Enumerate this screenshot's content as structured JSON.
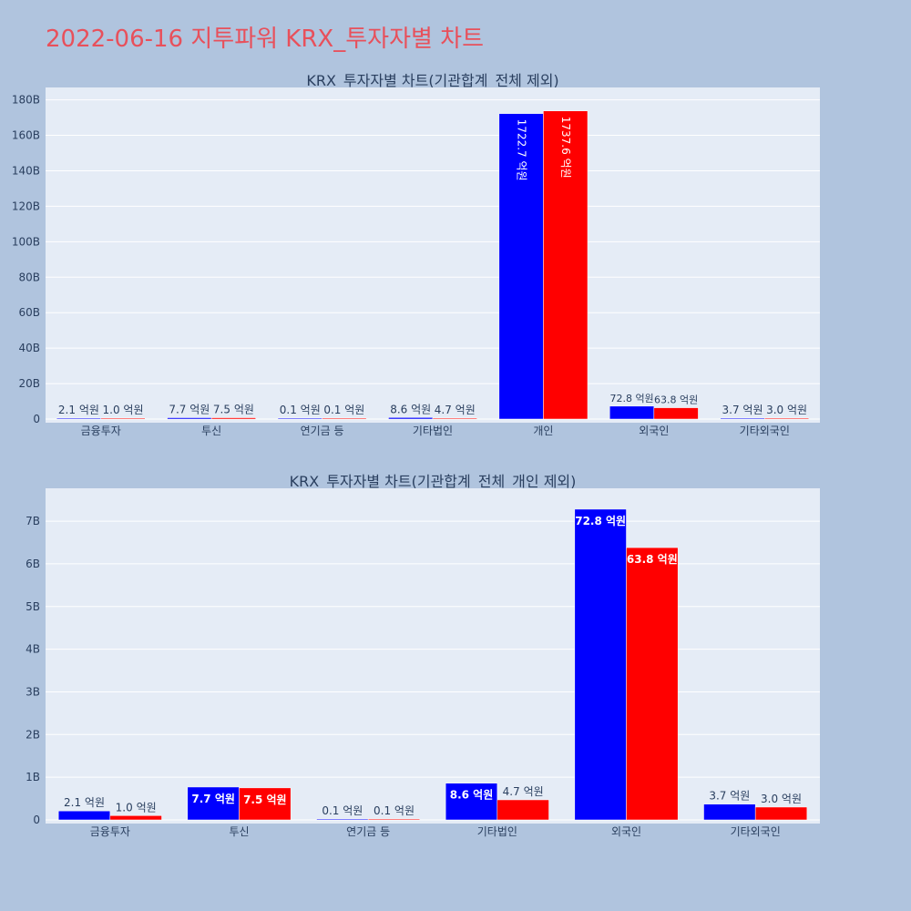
{
  "page_title": "2022-06-16 지투파워 KRX_투자자별 차트",
  "colors": {
    "buy": "#0000ff",
    "sell": "#ff0000",
    "plot_bg": "#e5ecf6",
    "page_bg": "#b0c4de",
    "title": "#e8505b"
  },
  "chart_data": [
    {
      "type": "bar",
      "title": "KRX_투자자별 차트(기관합계_전체 제외)",
      "categories": [
        "금융투자",
        "투신",
        "연기금 등",
        "기타법인",
        "개인",
        "외국인",
        "기타외국인"
      ],
      "series": [
        {
          "color": "#0000ff",
          "values": [
            0.21,
            0.77,
            0.01,
            0.86,
            172.27,
            7.28,
            0.37
          ],
          "labels": [
            "2.1 억원",
            "7.7 억원",
            "0.1 억원",
            "8.6 억원",
            "1722.7 억원",
            "72.8 억원",
            "3.7 억원"
          ]
        },
        {
          "color": "#ff0000",
          "values": [
            0.1,
            0.75,
            0.01,
            0.47,
            173.76,
            6.38,
            0.3
          ],
          "labels": [
            "1.0 억원",
            "7.5 억원",
            "0.1 억원",
            "4.7 억원",
            "1737.6 억원",
            "63.8 억원",
            "3.0 억원"
          ]
        }
      ],
      "ylim": [
        0,
        187
      ],
      "yticks": [
        0,
        20,
        40,
        60,
        80,
        100,
        120,
        140,
        160,
        180
      ],
      "ytick_labels": [
        "0",
        "20B",
        "40B",
        "60B",
        "80B",
        "100B",
        "120B",
        "140B",
        "160B",
        "180B"
      ],
      "legend": "none",
      "grid": true
    },
    {
      "type": "bar",
      "title": "KRX_투자자별 차트(기관합계_전체_개인 제외)",
      "categories": [
        "금융투자",
        "투신",
        "연기금 등",
        "기타법인",
        "외국인",
        "기타외국인"
      ],
      "series": [
        {
          "color": "#0000ff",
          "values": [
            0.21,
            0.77,
            0.01,
            0.86,
            7.28,
            0.37
          ],
          "labels": [
            "2.1 억원",
            "7.7 억원",
            "0.1 억원",
            "8.6 억원",
            "72.8 억원",
            "3.7 억원"
          ]
        },
        {
          "color": "#ff0000",
          "values": [
            0.1,
            0.75,
            0.01,
            0.47,
            6.38,
            0.3
          ],
          "labels": [
            "1.0 억원",
            "7.5 억원",
            "0.1 억원",
            "4.7 억원",
            "63.8 억원",
            "3.0 억원"
          ]
        }
      ],
      "ylim": [
        0,
        7.77
      ],
      "yticks": [
        0,
        1,
        2,
        3,
        4,
        5,
        6,
        7
      ],
      "ytick_labels": [
        "0",
        "1B",
        "2B",
        "3B",
        "4B",
        "5B",
        "6B",
        "7B"
      ],
      "legend": "none",
      "grid": true
    }
  ]
}
